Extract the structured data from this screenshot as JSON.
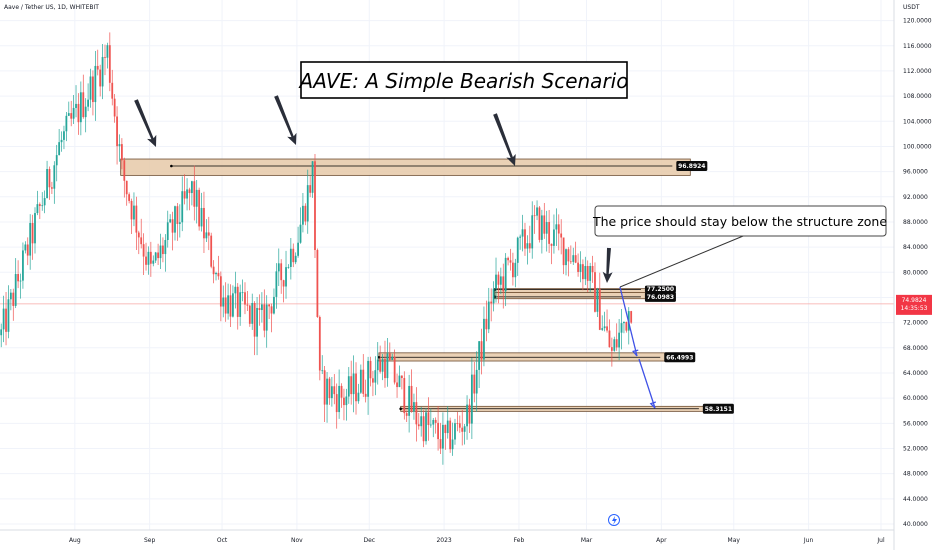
{
  "header": {
    "symbol_line": "Aave / Tether US, 1D, WHITEBIT"
  },
  "axis": {
    "currency": "USDT"
  },
  "colors": {
    "up": "#26a69a",
    "down": "#ef5350",
    "zone_fill": "#e6c9a8",
    "zone_stroke": "#6d4c2f",
    "projection": "#3f51e6",
    "price_tag": "#f23645",
    "price_line": "#f7a7a4"
  },
  "chart_data": {
    "type": "candlestick",
    "title": "AAVE: A Simple Bearish Scenario",
    "annotation": "The price should stay below the structure zone",
    "ylim": [
      40,
      122
    ],
    "y_scale": "linear",
    "y_ticks": [
      "120.0000",
      "116.0000",
      "112.0000",
      "108.0000",
      "104.0000",
      "100.0000",
      "96.0000",
      "92.0000",
      "88.0000",
      "84.0000",
      "80.0000",
      "76.0000",
      "72.0000",
      "68.0000",
      "64.0000",
      "60.0000",
      "56.0000",
      "52.0000",
      "48.0000",
      "44.0000",
      "40.0000"
    ],
    "x_ticks": [
      "Aug",
      "Sep",
      "Oct",
      "Nov",
      "Dec",
      "2023",
      "Feb",
      "Mar",
      "Apr",
      "May",
      "Jun",
      "Jul"
    ],
    "current_price": {
      "value": "74.9824",
      "countdown": "14:35:53"
    },
    "zones": [
      {
        "label": "96.8924",
        "top": 98,
        "bottom": 95.4
      },
      {
        "label": "77.2500",
        "top": 77.4,
        "bottom": 76.8
      },
      {
        "label": "76.0983",
        "top": 76.8,
        "bottom": 75.8
      },
      {
        "label": "66.4993",
        "top": 67.2,
        "bottom": 65.9
      },
      {
        "label": "58.3151",
        "top": 58.7,
        "bottom": 57.9
      }
    ],
    "segments": [
      {
        "start": "2022-07-01",
        "end": "2022-07-25",
        "from": 70,
        "to": 100
      },
      {
        "start": "2022-07-25",
        "end": "2022-08-08",
        "from": 100,
        "to": 110
      },
      {
        "start": "2022-08-08",
        "end": "2022-08-14",
        "from": 110,
        "to": 115
      },
      {
        "start": "2022-08-14",
        "end": "2022-08-20",
        "from": 115,
        "to": 96
      },
      {
        "start": "2022-08-20",
        "end": "2022-09-01",
        "from": 96,
        "to": 80
      },
      {
        "start": "2022-09-01",
        "end": "2022-09-18",
        "from": 80,
        "to": 93
      },
      {
        "start": "2022-09-18",
        "end": "2022-10-01",
        "from": 93,
        "to": 76
      },
      {
        "start": "2022-10-01",
        "end": "2022-10-17",
        "from": 76,
        "to": 72
      },
      {
        "start": "2022-10-17",
        "end": "2022-11-01",
        "from": 72,
        "to": 86
      },
      {
        "start": "2022-11-01",
        "end": "2022-11-07",
        "from": 86,
        "to": 96
      },
      {
        "start": "2022-11-07",
        "end": "2022-11-10",
        "from": 96,
        "to": 62
      },
      {
        "start": "2022-11-10",
        "end": "2022-11-20",
        "from": 62,
        "to": 60
      },
      {
        "start": "2022-11-20",
        "end": "2022-12-07",
        "from": 60,
        "to": 66
      },
      {
        "start": "2022-12-07",
        "end": "2022-12-20",
        "from": 66,
        "to": 57
      },
      {
        "start": "2022-12-20",
        "end": "2023-01-01",
        "from": 57,
        "to": 53
      },
      {
        "start": "2023-01-01",
        "end": "2023-01-10",
        "from": 53,
        "to": 57
      },
      {
        "start": "2023-01-10",
        "end": "2023-01-20",
        "from": 57,
        "to": 76
      },
      {
        "start": "2023-01-20",
        "end": "2023-02-08",
        "from": 76,
        "to": 88
      },
      {
        "start": "2023-02-08",
        "end": "2023-02-22",
        "from": 88,
        "to": 83
      },
      {
        "start": "2023-02-22",
        "end": "2023-03-01",
        "from": 83,
        "to": 80
      },
      {
        "start": "2023-03-01",
        "end": "2023-03-11",
        "from": 80,
        "to": 67
      },
      {
        "start": "2023-03-11",
        "end": "2023-03-19",
        "from": 67,
        "to": 75
      }
    ]
  }
}
